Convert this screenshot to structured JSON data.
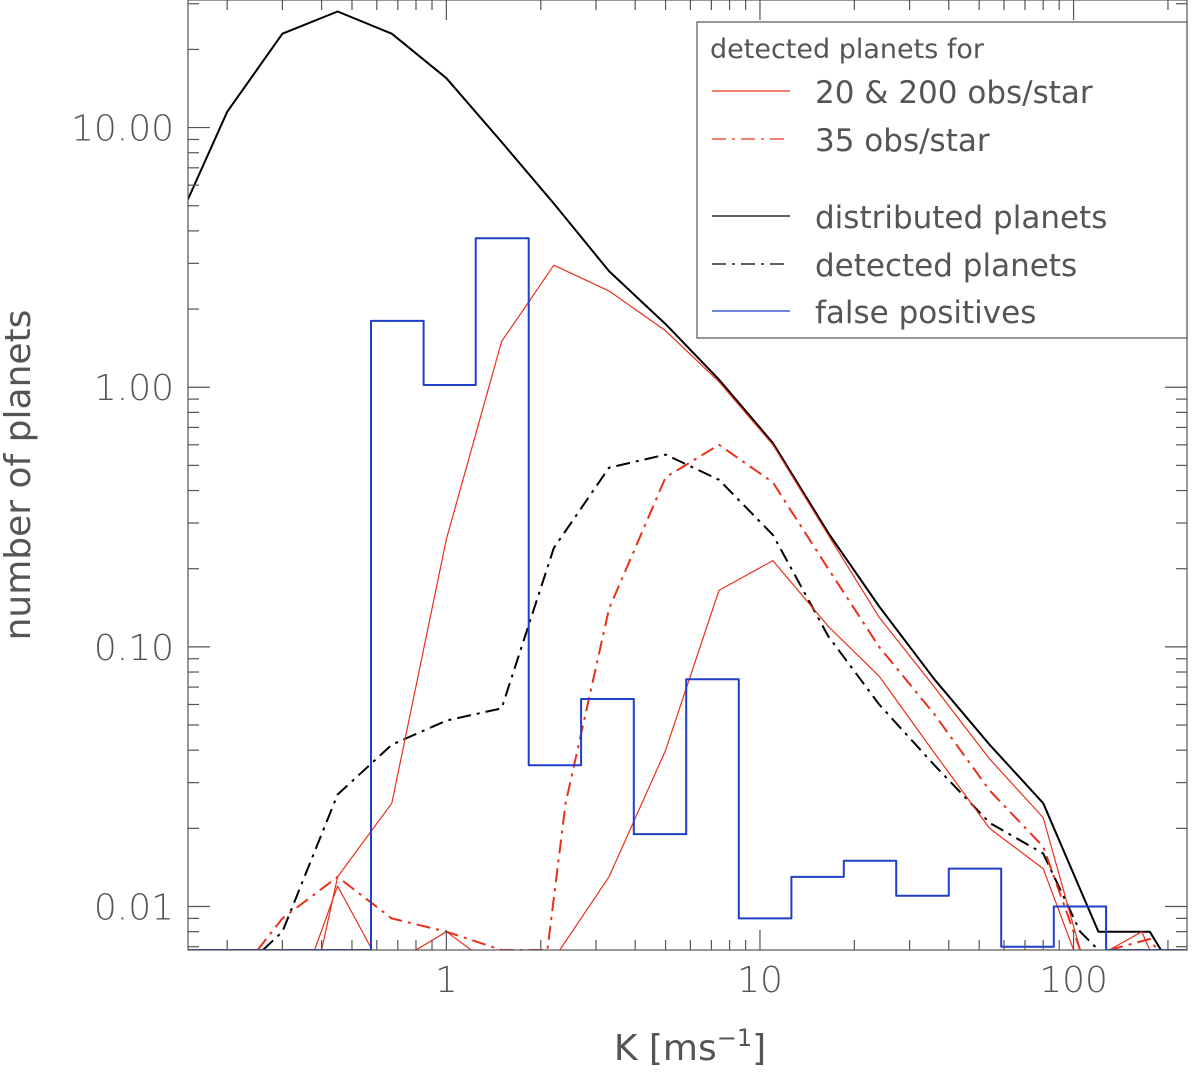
{
  "chart_data": {
    "type": "line",
    "title": "",
    "xlabel": {
      "base": "K [ms",
      "sup": "−1",
      "close": "]"
    },
    "ylabel": "number of planets",
    "x_scale": "log",
    "y_scale": "log",
    "xlim": [
      0.15,
      230
    ],
    "ylim": [
      0.0068,
      31
    ],
    "grid": false,
    "x_ticks": [
      {
        "value": 1,
        "label": "1"
      },
      {
        "value": 10,
        "label": "10"
      },
      {
        "value": 100,
        "label": "100"
      }
    ],
    "y_ticks": [
      {
        "value": 0.01,
        "label": "0.01"
      },
      {
        "value": 0.1,
        "label": "0.10"
      },
      {
        "value": 1,
        "label": "1.00"
      },
      {
        "value": 10,
        "label": "10.00"
      }
    ],
    "legend": {
      "placement": "top-right",
      "header": "detected planets for",
      "entries": [
        {
          "label": "20 & 200 obs/star",
          "color": "#e8301c",
          "dash": "solid"
        },
        {
          "label": "35 obs/star",
          "color": "#e8301c",
          "dash": "dashdot"
        },
        {
          "label": "distributed planets",
          "color": "#000000",
          "dash": "solid"
        },
        {
          "label": "detected planets",
          "color": "#000000",
          "dash": "dashdot"
        },
        {
          "label": "false positives",
          "color": "#1f3fc8",
          "dash": "solid"
        }
      ]
    },
    "series": [
      {
        "color": "#000000",
        "dash": "solid",
        "width": 2,
        "kind": "line",
        "points": [
          [
            0.15,
            5.3
          ],
          [
            0.2,
            11.5
          ],
          [
            0.3,
            23
          ],
          [
            0.45,
            28
          ],
          [
            0.67,
            23
          ],
          [
            1.0,
            15.5
          ],
          [
            1.5,
            8.8
          ],
          [
            2.2,
            5.1
          ],
          [
            3.3,
            2.8
          ],
          [
            5.0,
            1.75
          ],
          [
            7.4,
            1.07
          ],
          [
            11,
            0.61
          ],
          [
            16.5,
            0.275
          ],
          [
            24,
            0.143
          ],
          [
            36,
            0.075
          ],
          [
            54,
            0.042
          ],
          [
            80,
            0.025
          ],
          [
            120,
            0.008
          ],
          [
            175,
            0.008
          ],
          [
            190,
            0.0068
          ]
        ]
      },
      {
        "color": "#000000",
        "dash": "dashdot",
        "width": 2,
        "kind": "line",
        "points": [
          [
            0.26,
            0.0068
          ],
          [
            0.3,
            0.008
          ],
          [
            0.45,
            0.027
          ],
          [
            0.67,
            0.042
          ],
          [
            1.0,
            0.052
          ],
          [
            1.5,
            0.058
          ],
          [
            2.2,
            0.24
          ],
          [
            3.3,
            0.49
          ],
          [
            5.0,
            0.55
          ],
          [
            7.4,
            0.44
          ],
          [
            11,
            0.27
          ],
          [
            16.5,
            0.11
          ],
          [
            24,
            0.06
          ],
          [
            36,
            0.035
          ],
          [
            54,
            0.021
          ],
          [
            80,
            0.016
          ],
          [
            105,
            0.008
          ],
          [
            120,
            0.0068
          ]
        ]
      },
      {
        "color": "#e8301c",
        "dash": "solid",
        "width": 1.2,
        "kind": "line",
        "points": [
          [
            0.4,
            0.0068
          ],
          [
            0.45,
            0.013
          ],
          [
            0.67,
            0.025
          ],
          [
            1.0,
            0.26
          ],
          [
            1.5,
            1.5
          ],
          [
            2.2,
            2.95
          ],
          [
            3.3,
            2.35
          ],
          [
            5.0,
            1.65
          ],
          [
            7.4,
            1.05
          ],
          [
            11,
            0.6
          ],
          [
            16.5,
            0.27
          ],
          [
            24,
            0.13
          ],
          [
            36,
            0.07
          ],
          [
            54,
            0.037
          ],
          [
            80,
            0.022
          ],
          [
            105,
            0.0068
          ]
        ]
      },
      {
        "color": "#e8301c",
        "dash": "solid",
        "width": 1.2,
        "kind": "line",
        "points": [
          [
            2.3,
            0.0068
          ],
          [
            3.3,
            0.013
          ],
          [
            5.0,
            0.04
          ],
          [
            7.4,
            0.165
          ],
          [
            11,
            0.215
          ],
          [
            16.5,
            0.12
          ],
          [
            24,
            0.077
          ],
          [
            36,
            0.039
          ],
          [
            54,
            0.02
          ],
          [
            80,
            0.014
          ],
          [
            100,
            0.0068
          ]
        ]
      },
      {
        "color": "#e8301c",
        "dash": "solid",
        "width": 1.2,
        "kind": "line",
        "points": [
          [
            0.38,
            0.0068
          ],
          [
            0.45,
            0.012
          ],
          [
            0.58,
            0.0068
          ]
        ]
      },
      {
        "color": "#e8301c",
        "dash": "solid",
        "width": 1.2,
        "kind": "line",
        "points": [
          [
            0.8,
            0.0068
          ],
          [
            1.0,
            0.008
          ],
          [
            1.2,
            0.0068
          ]
        ]
      },
      {
        "color": "#e8301c",
        "dash": "solid",
        "width": 1.2,
        "kind": "line",
        "points": [
          [
            130,
            0.0068
          ],
          [
            165,
            0.008
          ],
          [
            175,
            0.0068
          ]
        ]
      },
      {
        "color": "#e8301c",
        "dash": "dashdot",
        "width": 2,
        "kind": "line",
        "points": [
          [
            0.25,
            0.0068
          ],
          [
            0.3,
            0.009
          ],
          [
            0.45,
            0.013
          ],
          [
            0.67,
            0.009
          ],
          [
            1.0,
            0.008
          ],
          [
            1.5,
            0.0068
          ],
          [
            2.1,
            0.0068
          ],
          [
            2.4,
            0.025
          ],
          [
            3.3,
            0.14
          ],
          [
            5.0,
            0.45
          ],
          [
            7.4,
            0.6
          ],
          [
            11,
            0.43
          ],
          [
            16.5,
            0.2
          ],
          [
            24,
            0.1
          ],
          [
            36,
            0.055
          ],
          [
            54,
            0.028
          ],
          [
            80,
            0.017
          ],
          [
            105,
            0.0068
          ]
        ]
      },
      {
        "color": "#e8301c",
        "dash": "dashdot",
        "width": 2,
        "kind": "line",
        "points": [
          [
            130,
            0.0068
          ],
          [
            175,
            0.0075
          ],
          [
            185,
            0.0068
          ]
        ]
      },
      {
        "color": "#1f3fc8",
        "dash": "solid",
        "width": 2,
        "kind": "step",
        "edges": [
          0.15,
          0.215,
          0.316,
          0.464,
          0.575,
          0.846,
          1.24,
          1.83,
          2.69,
          3.96,
          5.82,
          8.56,
          12.6,
          18.5,
          27.2,
          40.0,
          58.8,
          86.5,
          127,
          187,
          230
        ],
        "values": [
          0,
          0,
          0,
          0,
          1.8,
          1.02,
          3.75,
          0.035,
          0.063,
          0.019,
          0.075,
          0.009,
          0.013,
          0.015,
          0.011,
          0.014,
          0.007,
          0.01,
          0,
          0
        ]
      }
    ]
  }
}
